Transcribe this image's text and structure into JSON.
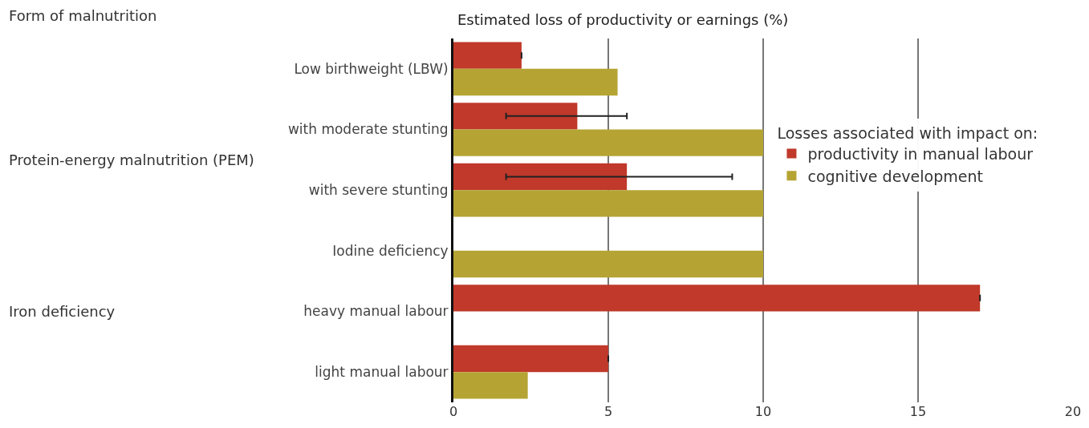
{
  "chart_data": {
    "type": "bar",
    "orientation": "horizontal",
    "title": "Estimated loss of productivity or earnings (%)",
    "categories": [
      "Low birthweight (LBW)",
      "with moderate stunting",
      "with severe stunting",
      "Iodine deficiency",
      "heavy manual labour",
      "light manual labour"
    ],
    "series": [
      {
        "name": "productivity in manual labour",
        "color": "#c0392a",
        "values": [
          2.2,
          4,
          5.6,
          null,
          17,
          5
        ],
        "errors": [
          null,
          [
            1.7,
            5.6
          ],
          [
            1.7,
            9
          ],
          null,
          null,
          null
        ]
      },
      {
        "name": "cognitive development",
        "color": "#b5a433",
        "values": [
          5.3,
          10,
          10,
          10,
          null,
          2.4
        ]
      }
    ],
    "legend_title": "Losses associated with impact on:",
    "annotations": [
      "Form of malnutrition",
      "Protein-energy malnutrition (PEM)",
      "Iron deficiency"
    ],
    "xlim": [
      0,
      20
    ],
    "xticks": [
      0,
      5,
      10,
      15,
      20
    ],
    "grid": "x",
    "legend": "right"
  }
}
